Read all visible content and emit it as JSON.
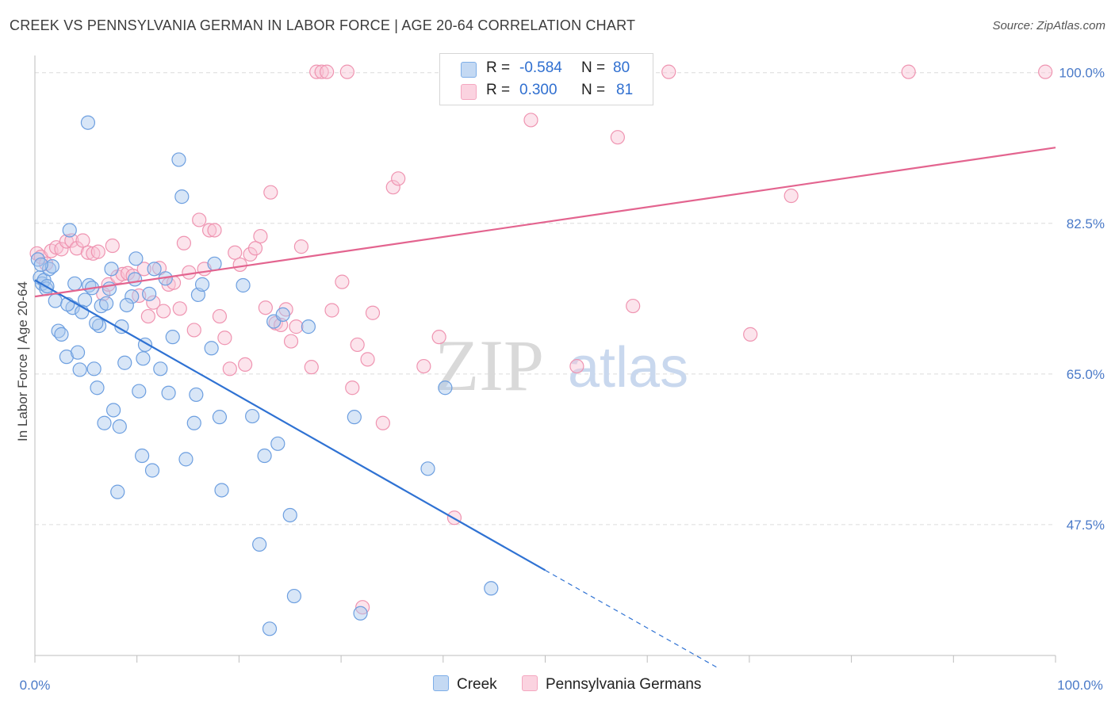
{
  "header": {
    "title": "CREEK VS PENNSYLVANIA GERMAN IN LABOR FORCE | AGE 20-64 CORRELATION CHART",
    "source": "Source: ZipAtlas.com"
  },
  "legend": {
    "rows": [
      {
        "r_label": "R =",
        "r_value": "-0.584",
        "n_label": "N =",
        "n_value": "80",
        "color": "#7eaee8"
      },
      {
        "r_label": "R =",
        "r_value": "0.300",
        "n_label": "N =",
        "n_value": "81",
        "color": "#f4a7c0"
      }
    ]
  },
  "bottom_legend": {
    "creek": "Creek",
    "pa": "Pennsylvania Germans"
  },
  "watermark": {
    "zip": "ZIP",
    "atlas": "atlas"
  },
  "colors": {
    "creek_fill": "#a9c8ee",
    "creek_stroke": "#6d9fe0",
    "creek_line": "#2f72d3",
    "pa_fill": "#f8c4d4",
    "pa_stroke": "#ef94b1",
    "pa_line": "#e3648f",
    "grid": "#dcdcdc",
    "axis": "#bdbdbd"
  },
  "chart_data": {
    "type": "scatter",
    "title": "CREEK VS PENNSYLVANIA GERMAN IN LABOR FORCE | AGE 20-64 CORRELATION CHART",
    "xlabel": "",
    "ylabel": "In Labor Force | Age 20-64",
    "xlim": [
      0,
      100
    ],
    "ylim": [
      32.3,
      102.0
    ],
    "x_tick_labels": [
      "0.0%",
      "100.0%"
    ],
    "y_ticks": [
      47.5,
      65.0,
      82.5,
      100.0
    ],
    "y_tick_labels": [
      "47.5%",
      "65.0%",
      "82.5%",
      "100.0%"
    ],
    "grid": true,
    "legend_position": "top-center",
    "series": [
      {
        "name": "Creek",
        "r": -0.584,
        "n": 80,
        "trend": {
          "x": [
            0,
            50
          ],
          "y": [
            75.9,
            42.2
          ],
          "dashed_to": [
            67,
            30.8
          ]
        },
        "points": [
          [
            0.3,
            78.3
          ],
          [
            0.5,
            76.2
          ],
          [
            0.7,
            75.5
          ],
          [
            0.9,
            75.9
          ],
          [
            1.1,
            74.9
          ],
          [
            1.4,
            77.2
          ],
          [
            1.7,
            77.5
          ],
          [
            2.0,
            73.5
          ],
          [
            2.3,
            70.0
          ],
          [
            2.6,
            69.6
          ],
          [
            3.1,
            67.0
          ],
          [
            3.4,
            81.7
          ],
          [
            3.7,
            72.7
          ],
          [
            3.9,
            75.5
          ],
          [
            4.2,
            67.5
          ],
          [
            4.4,
            65.5
          ],
          [
            4.9,
            73.6
          ],
          [
            5.3,
            75.3
          ],
          [
            5.2,
            94.2
          ],
          [
            5.6,
            75.0
          ],
          [
            5.8,
            65.6
          ],
          [
            6.1,
            63.4
          ],
          [
            6.3,
            70.6
          ],
          [
            6.5,
            72.9
          ],
          [
            6.8,
            59.3
          ],
          [
            7.0,
            73.2
          ],
          [
            7.3,
            74.9
          ],
          [
            7.5,
            77.2
          ],
          [
            7.7,
            60.8
          ],
          [
            8.1,
            51.3
          ],
          [
            8.3,
            58.9
          ],
          [
            8.5,
            70.5
          ],
          [
            8.8,
            66.3
          ],
          [
            9.5,
            74.0
          ],
          [
            9.8,
            76.0
          ],
          [
            9.9,
            78.4
          ],
          [
            10.2,
            63.0
          ],
          [
            10.5,
            55.5
          ],
          [
            10.6,
            66.8
          ],
          [
            10.8,
            68.4
          ],
          [
            11.2,
            74.3
          ],
          [
            11.5,
            53.8
          ],
          [
            11.7,
            77.2
          ],
          [
            12.3,
            65.6
          ],
          [
            12.8,
            76.1
          ],
          [
            13.1,
            62.8
          ],
          [
            13.5,
            69.3
          ],
          [
            14.1,
            89.9
          ],
          [
            14.4,
            85.6
          ],
          [
            14.8,
            55.1
          ],
          [
            15.6,
            59.3
          ],
          [
            15.8,
            62.6
          ],
          [
            16.0,
            74.2
          ],
          [
            16.4,
            75.4
          ],
          [
            17.3,
            68.0
          ],
          [
            17.6,
            77.8
          ],
          [
            18.1,
            60.0
          ],
          [
            18.3,
            51.5
          ],
          [
            20.4,
            75.3
          ],
          [
            21.3,
            60.1
          ],
          [
            22.0,
            45.2
          ],
          [
            22.5,
            55.5
          ],
          [
            23.0,
            35.4
          ],
          [
            23.4,
            71.1
          ],
          [
            23.8,
            56.9
          ],
          [
            24.3,
            71.9
          ],
          [
            25.0,
            48.6
          ],
          [
            25.4,
            39.2
          ],
          [
            26.8,
            70.5
          ],
          [
            31.3,
            60.0
          ],
          [
            31.9,
            37.2
          ],
          [
            38.5,
            54.0
          ],
          [
            40.2,
            63.4
          ],
          [
            44.7,
            40.1
          ],
          [
            0.6,
            77.7
          ],
          [
            1.2,
            75.2
          ],
          [
            3.2,
            73.1
          ],
          [
            4.6,
            72.2
          ],
          [
            6.0,
            70.9
          ],
          [
            9.0,
            73.0
          ]
        ]
      },
      {
        "name": "Pennsylvania Germans",
        "r": 0.3,
        "n": 81,
        "trend": {
          "x": [
            0,
            100
          ],
          "y": [
            74.0,
            91.3
          ]
        },
        "points": [
          [
            0.2,
            79.0
          ],
          [
            0.6,
            78.6
          ],
          [
            1.1,
            77.8
          ],
          [
            1.6,
            79.3
          ],
          [
            2.1,
            79.7
          ],
          [
            2.6,
            79.5
          ],
          [
            3.1,
            80.4
          ],
          [
            3.6,
            80.5
          ],
          [
            4.1,
            79.6
          ],
          [
            4.7,
            80.5
          ],
          [
            5.2,
            79.1
          ],
          [
            5.7,
            79.0
          ],
          [
            6.2,
            79.2
          ],
          [
            6.7,
            74.3
          ],
          [
            7.2,
            75.4
          ],
          [
            7.6,
            79.9
          ],
          [
            8.1,
            76.3
          ],
          [
            8.6,
            76.6
          ],
          [
            9.1,
            76.7
          ],
          [
            9.6,
            76.4
          ],
          [
            10.2,
            74.1
          ],
          [
            10.7,
            77.2
          ],
          [
            11.1,
            71.7
          ],
          [
            11.6,
            73.3
          ],
          [
            12.2,
            77.3
          ],
          [
            12.6,
            72.3
          ],
          [
            13.1,
            75.4
          ],
          [
            13.6,
            75.6
          ],
          [
            14.2,
            72.6
          ],
          [
            14.6,
            80.2
          ],
          [
            15.1,
            76.8
          ],
          [
            15.6,
            70.1
          ],
          [
            16.1,
            82.9
          ],
          [
            16.6,
            77.2
          ],
          [
            17.1,
            81.7
          ],
          [
            17.6,
            81.7
          ],
          [
            18.1,
            71.7
          ],
          [
            18.6,
            69.2
          ],
          [
            19.1,
            65.6
          ],
          [
            19.6,
            79.1
          ],
          [
            20.1,
            77.7
          ],
          [
            20.6,
            66.1
          ],
          [
            21.1,
            78.9
          ],
          [
            21.6,
            79.6
          ],
          [
            22.1,
            81.0
          ],
          [
            22.6,
            72.7
          ],
          [
            23.1,
            86.1
          ],
          [
            23.6,
            70.9
          ],
          [
            24.1,
            70.7
          ],
          [
            24.6,
            72.5
          ],
          [
            25.1,
            68.8
          ],
          [
            25.6,
            70.5
          ],
          [
            26.1,
            79.8
          ],
          [
            27.1,
            65.8
          ],
          [
            27.6,
            100.1
          ],
          [
            28.1,
            100.1
          ],
          [
            28.6,
            100.1
          ],
          [
            29.1,
            72.4
          ],
          [
            30.1,
            75.7
          ],
          [
            30.6,
            100.1
          ],
          [
            31.1,
            63.4
          ],
          [
            31.6,
            68.4
          ],
          [
            32.1,
            37.9
          ],
          [
            32.6,
            66.7
          ],
          [
            33.1,
            72.1
          ],
          [
            34.1,
            59.3
          ],
          [
            35.1,
            86.7
          ],
          [
            35.6,
            87.7
          ],
          [
            38.1,
            65.9
          ],
          [
            39.6,
            69.3
          ],
          [
            41.1,
            48.3
          ],
          [
            46.1,
            100.1
          ],
          [
            48.6,
            94.5
          ],
          [
            53.1,
            65.9
          ],
          [
            57.1,
            92.5
          ],
          [
            58.6,
            72.9
          ],
          [
            62.1,
            100.1
          ],
          [
            70.1,
            69.6
          ],
          [
            74.1,
            85.7
          ],
          [
            85.6,
            100.1
          ],
          [
            99.0,
            100.1
          ]
        ]
      }
    ]
  }
}
